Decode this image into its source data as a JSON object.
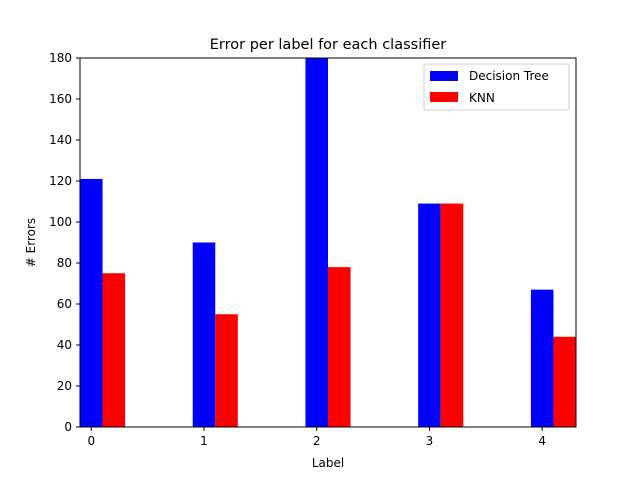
{
  "chart_data": {
    "type": "bar",
    "title": "Error per label for each classifier",
    "xlabel": "Label",
    "ylabel": "# Errors",
    "categories": [
      "0",
      "1",
      "2",
      "3",
      "4"
    ],
    "series": [
      {
        "name": "Decision Tree",
        "color": "#0000ff",
        "values": [
          121,
          90,
          180,
          109,
          67
        ]
      },
      {
        "name": "KNN",
        "color": "#ff0000",
        "values": [
          75,
          55,
          78,
          109,
          44
        ]
      }
    ],
    "ylim": [
      0,
      180
    ],
    "yticks": [
      0,
      20,
      40,
      60,
      80,
      100,
      120,
      140,
      160,
      180
    ],
    "grid": false,
    "legend": "top-right"
  }
}
